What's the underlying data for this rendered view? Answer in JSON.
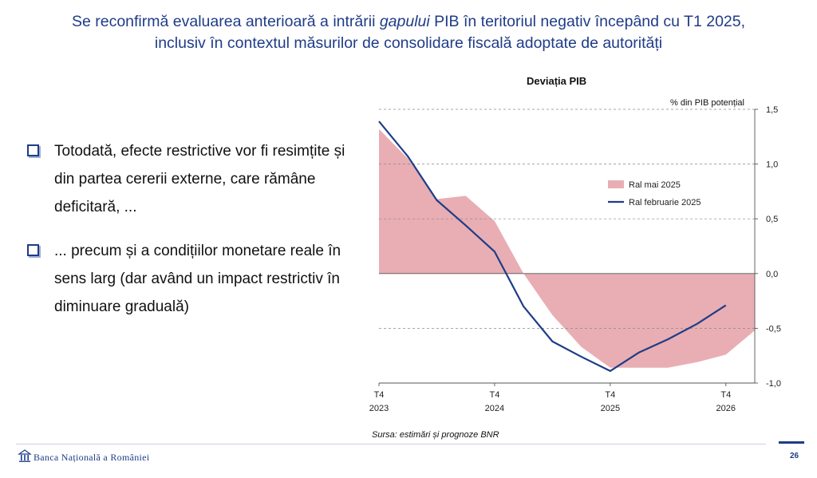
{
  "slide": {
    "title_line1_pre": "Se reconfirmă evaluarea anterioară a intrării ",
    "title_line1_italic": "gapului",
    "title_line1_post": " PIB în teritoriul negativ începând cu T1 2025,",
    "title_line2": "inclusiv în contextul măsurilor de consolidare fiscală adoptate de autorități",
    "bullets": [
      "Totodată, efecte restrictive vor fi resimțite și din partea cererii externe, care rămâne deficitară, ...",
      "... precum și a condițiilor monetare reale în sens larg (dar având un impact restrictiv în diminuare graduală)"
    ],
    "source": "Sursa: estimări și prognoze BNR",
    "bank_name": "Banca Națională a României",
    "page_number": "26"
  },
  "chart_data": {
    "type": "area",
    "title": "Deviația PIB",
    "ylabel": "% din PIB potențial",
    "ylim": [
      -1.0,
      1.5
    ],
    "yticks": [
      1.5,
      1.0,
      0.5,
      0.0,
      -0.5,
      -1.0
    ],
    "ytick_labels": [
      "1,5",
      "1,0",
      "0,5",
      "0,0",
      "-0,5",
      "-1,0"
    ],
    "x_range": [
      0,
      13
    ],
    "x_ticks": [
      {
        "x": 0,
        "line1": "T4",
        "line2": "2023"
      },
      {
        "x": 4,
        "line1": "T4",
        "line2": "2024"
      },
      {
        "x": 8,
        "line1": "T4",
        "line2": "2025"
      },
      {
        "x": 12,
        "line1": "T4",
        "line2": "2026"
      }
    ],
    "legend_position": "right",
    "series": [
      {
        "name": "Ral mai 2025",
        "kind": "area",
        "color": "#e8aeb3",
        "x": [
          0,
          1,
          2,
          3,
          4,
          5,
          6,
          7,
          8,
          9,
          10,
          11,
          12,
          13
        ],
        "values": [
          1.32,
          1.05,
          0.68,
          0.71,
          0.48,
          0.0,
          -0.38,
          -0.67,
          -0.86,
          -0.86,
          -0.86,
          -0.81,
          -0.74,
          -0.52
        ]
      },
      {
        "name": "Ral februarie 2025",
        "kind": "line",
        "color": "#1f3c88",
        "x": [
          0,
          1,
          2,
          3,
          4,
          5,
          6,
          7,
          8,
          9,
          10,
          11,
          12
        ],
        "values": [
          1.39,
          1.07,
          0.67,
          0.44,
          0.2,
          -0.3,
          -0.62,
          -0.76,
          -0.89,
          -0.72,
          -0.6,
          -0.46,
          -0.29
        ]
      }
    ]
  }
}
